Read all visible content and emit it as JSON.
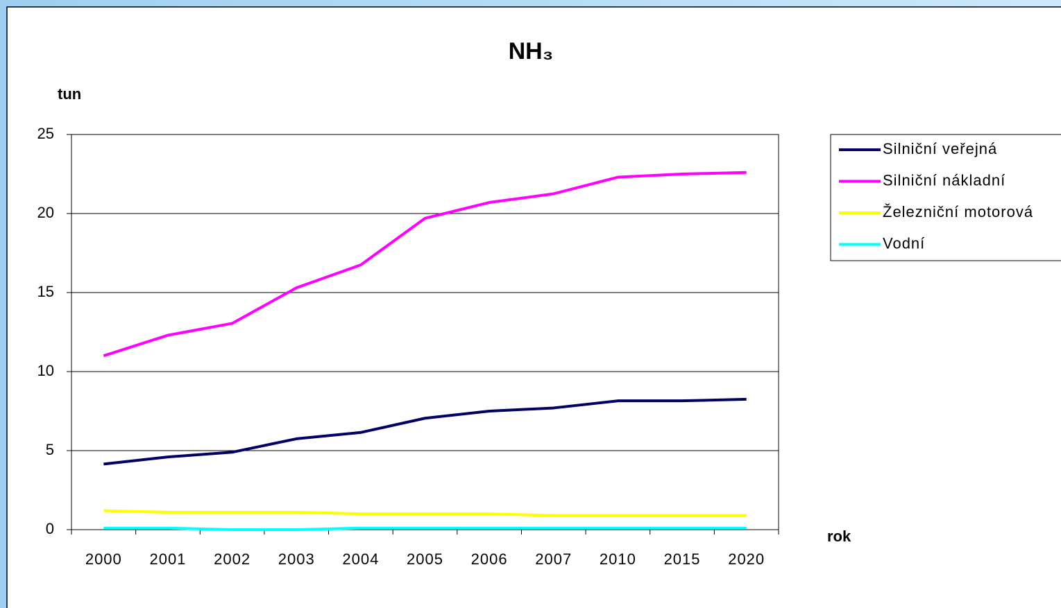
{
  "chart_data": {
    "type": "line",
    "title": "NH₃",
    "y_label": "tun",
    "x_label": "rok",
    "categories": [
      "2000",
      "2001",
      "2002",
      "2003",
      "2004",
      "2005",
      "2006",
      "2007",
      "2010",
      "2015",
      "2020"
    ],
    "series": [
      {
        "name": "Silniční veřejná",
        "color": "#000066",
        "values": [
          4.15,
          4.6,
          4.9,
          5.75,
          6.15,
          7.05,
          7.5,
          7.7,
          8.15,
          8.15,
          8.25
        ]
      },
      {
        "name": "Silniční nákladní",
        "color": "#ff00ff",
        "values": [
          11.0,
          12.3,
          13.05,
          15.3,
          16.75,
          19.7,
          20.7,
          21.25,
          22.3,
          22.5,
          22.6
        ]
      },
      {
        "name": "Železniční motorová",
        "color": "#ffff00",
        "values": [
          1.2,
          1.1,
          1.1,
          1.1,
          1.0,
          1.0,
          1.0,
          0.9,
          0.9,
          0.9,
          0.9
        ]
      },
      {
        "name": "Vodní",
        "color": "#00ffff",
        "values": [
          0.1,
          0.1,
          0.0,
          0.0,
          0.1,
          0.1,
          0.1,
          0.1,
          0.1,
          0.1,
          0.1
        ]
      }
    ],
    "ylim": [
      0,
      25
    ],
    "yticks": [
      0,
      5,
      10,
      15,
      20,
      25
    ],
    "grid": true,
    "legend": "right"
  }
}
